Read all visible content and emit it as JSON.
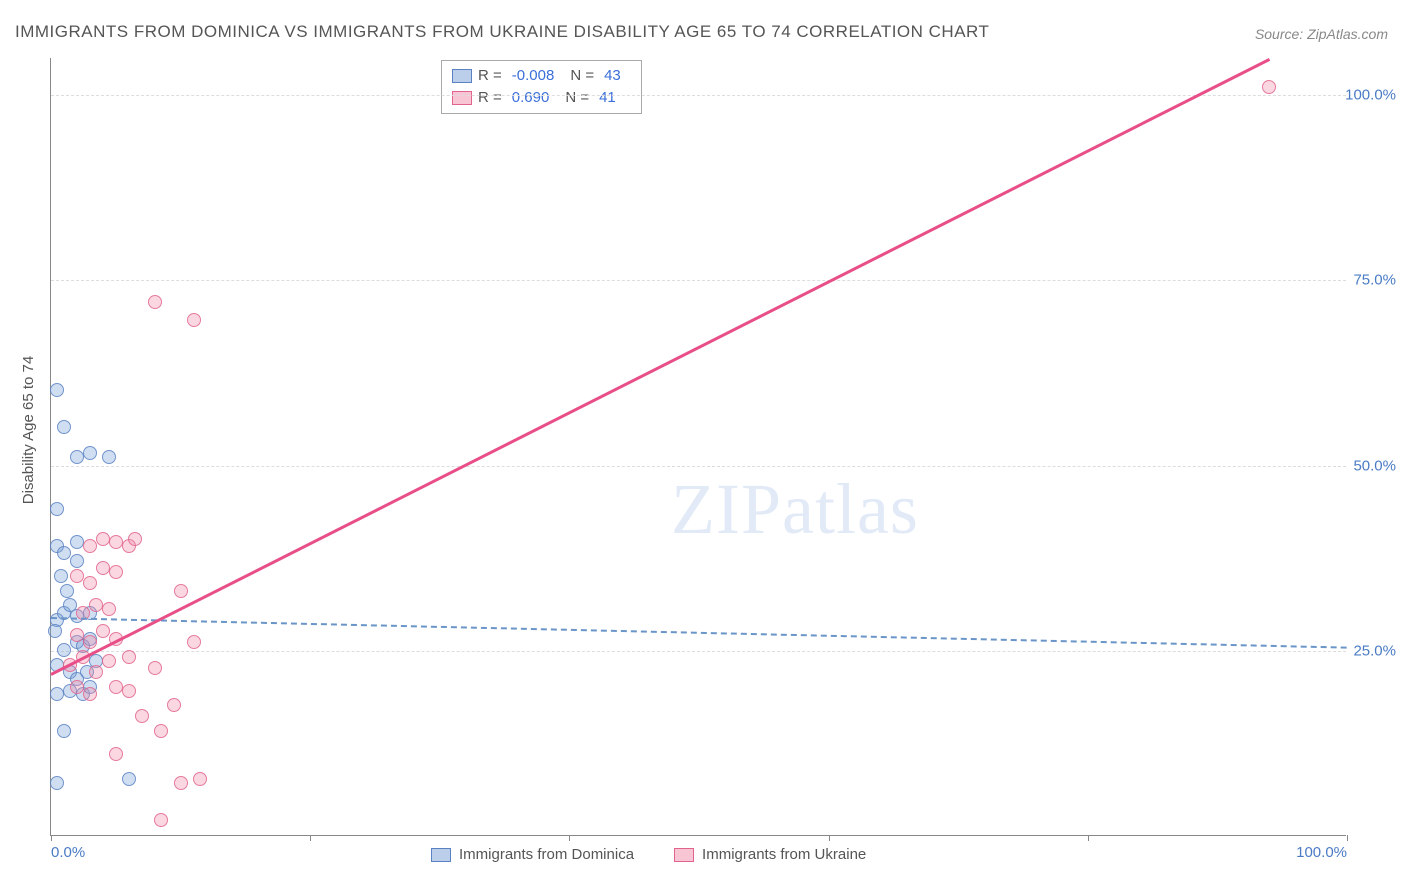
{
  "title": "IMMIGRANTS FROM DOMINICA VS IMMIGRANTS FROM UKRAINE DISABILITY AGE 65 TO 74 CORRELATION CHART",
  "source": "Source: ZipAtlas.com",
  "y_axis_label": "Disability Age 65 to 74",
  "watermark": "ZIPatlas",
  "chart": {
    "type": "scatter",
    "xlim": [
      0,
      100
    ],
    "ylim": [
      0,
      105
    ],
    "x_ticks": [
      0,
      20,
      40,
      60,
      80,
      100
    ],
    "x_tick_labels": {
      "0": "0.0%",
      "100": "100.0%"
    },
    "y_ticks": [
      25,
      50,
      75,
      100
    ],
    "y_tick_labels": {
      "25": "25.0%",
      "50": "50.0%",
      "75": "75.0%",
      "100": "100.0%"
    },
    "background_color": "#ffffff",
    "grid_color": "#dddddd",
    "axis_color": "#888888",
    "label_color": "#4a7bc4",
    "marker_size": 14,
    "series": [
      {
        "name": "Immigrants from Dominica",
        "color_fill": "rgba(120,160,215,0.35)",
        "color_stroke": "#5a82c3",
        "R": "-0.008",
        "N": "43",
        "trend": {
          "x1": 0,
          "y1": 29.5,
          "x2": 100,
          "y2": 25.5,
          "style": "dashed",
          "color": "#6a95c8"
        },
        "points": [
          [
            0.5,
            60
          ],
          [
            0.5,
            44
          ],
          [
            1,
            55
          ],
          [
            2,
            51
          ],
          [
            3,
            51.5
          ],
          [
            4.5,
            51
          ],
          [
            0.5,
            39
          ],
          [
            1,
            38
          ],
          [
            2,
            39.5
          ],
          [
            2,
            37
          ],
          [
            0.8,
            35
          ],
          [
            1.2,
            33
          ],
          [
            0.5,
            29
          ],
          [
            1,
            30
          ],
          [
            2,
            29.5
          ],
          [
            3,
            30
          ],
          [
            1.5,
            31
          ],
          [
            0.3,
            27.5
          ],
          [
            1,
            25
          ],
          [
            2,
            26
          ],
          [
            2.5,
            25.5
          ],
          [
            3,
            26.5
          ],
          [
            0.5,
            23
          ],
          [
            1.5,
            22
          ],
          [
            2,
            21
          ],
          [
            2.8,
            22
          ],
          [
            3.5,
            23.5
          ],
          [
            0.5,
            19
          ],
          [
            1.5,
            19.5
          ],
          [
            2.5,
            19
          ],
          [
            3,
            20
          ],
          [
            1,
            14
          ],
          [
            0.5,
            7
          ],
          [
            6,
            7.5
          ]
        ]
      },
      {
        "name": "Immigrants from Ukraine",
        "color_fill": "rgba(240,140,170,0.35)",
        "color_stroke": "#e1648c",
        "R": "0.690",
        "N": "41",
        "trend": {
          "x1": 0,
          "y1": 22,
          "x2": 94,
          "y2": 105,
          "style": "solid",
          "color": "#e84f88"
        },
        "points": [
          [
            8,
            72
          ],
          [
            11,
            69.5
          ],
          [
            94,
            101
          ],
          [
            3,
            39
          ],
          [
            4,
            40
          ],
          [
            5,
            39.5
          ],
          [
            6,
            39
          ],
          [
            6.5,
            40
          ],
          [
            2,
            35
          ],
          [
            3,
            34
          ],
          [
            4,
            36
          ],
          [
            5,
            35.5
          ],
          [
            2.5,
            30
          ],
          [
            3.5,
            31
          ],
          [
            4.5,
            30.5
          ],
          [
            10,
            33
          ],
          [
            2,
            27
          ],
          [
            3,
            26
          ],
          [
            4,
            27.5
          ],
          [
            5,
            26.5
          ],
          [
            11,
            26
          ],
          [
            1.5,
            23
          ],
          [
            2.5,
            24
          ],
          [
            3.5,
            22
          ],
          [
            4.5,
            23.5
          ],
          [
            6,
            24
          ],
          [
            8,
            22.5
          ],
          [
            2,
            20
          ],
          [
            3,
            19
          ],
          [
            5,
            20
          ],
          [
            6,
            19.5
          ],
          [
            7,
            16
          ],
          [
            8.5,
            14
          ],
          [
            9.5,
            17.5
          ],
          [
            5,
            11
          ],
          [
            10,
            7
          ],
          [
            11.5,
            7.5
          ],
          [
            8.5,
            2
          ]
        ]
      }
    ]
  },
  "legend_top": [
    {
      "swatch": "blue",
      "r_label": "R =",
      "r_val": "-0.008",
      "n_label": "N =",
      "n_val": "43"
    },
    {
      "swatch": "pink",
      "r_label": "R =",
      "r_val": "0.690",
      "n_label": "N =",
      "n_val": "41"
    }
  ],
  "legend_bottom": [
    {
      "swatch": "blue",
      "label": "Immigrants from Dominica"
    },
    {
      "swatch": "pink",
      "label": "Immigrants from Ukraine"
    }
  ]
}
